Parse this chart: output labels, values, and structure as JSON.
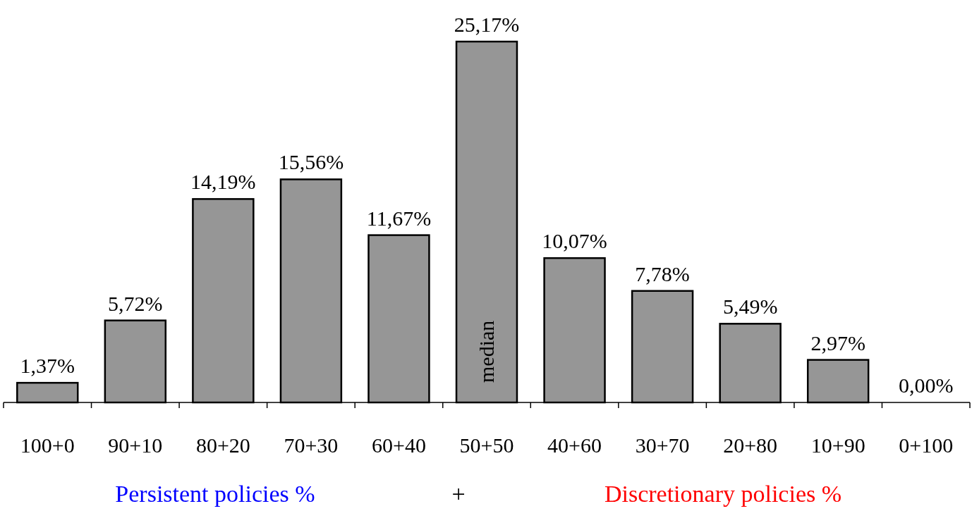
{
  "chart_data": {
    "type": "bar",
    "categories": [
      "100+0",
      "90+10",
      "80+20",
      "70+30",
      "60+40",
      "50+50",
      "40+60",
      "30+70",
      "20+80",
      "10+90",
      "0+100"
    ],
    "values": [
      1.37,
      5.72,
      14.19,
      15.56,
      11.67,
      25.17,
      10.07,
      7.78,
      5.49,
      2.97,
      0.0
    ],
    "value_labels": [
      "1,37%",
      "5,72%",
      "14,19%",
      "15,56%",
      "11,67%",
      "25,17%",
      "10,07%",
      "7,78%",
      "5,49%",
      "2,97%",
      "0,00%"
    ],
    "color": "#969696",
    "annotations": [
      "median",
      "Persistent policies %",
      "+",
      "Discretionary policies %"
    ]
  }
}
